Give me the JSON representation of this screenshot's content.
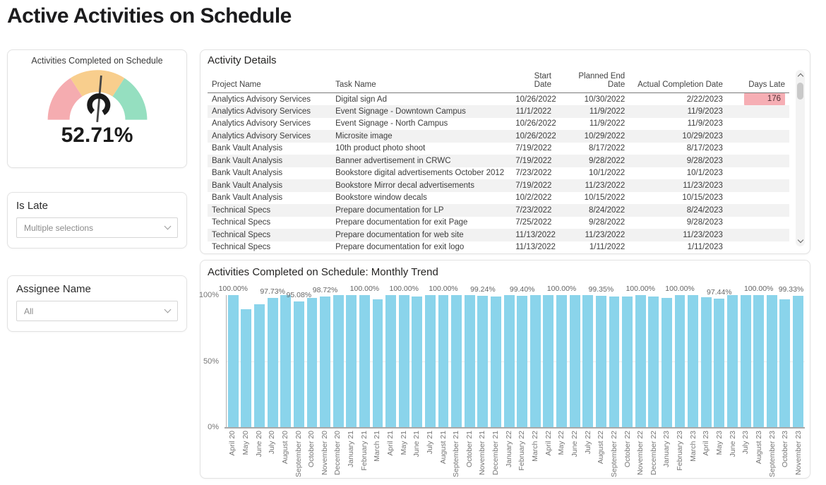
{
  "page": {
    "title": "Active Activities on Schedule"
  },
  "gauge_card": {
    "title": "Activities Completed on Schedule",
    "value": "52.71%",
    "percent": 52.71,
    "segment_colors": {
      "low": "#F5ACB0",
      "mid": "#F8CE8D",
      "high": "#95DFC0"
    },
    "needle_color": "#454545",
    "hub_color": "#1a1a1a"
  },
  "filter_is_late": {
    "label": "Is Late",
    "value": "Multiple selections"
  },
  "filter_assignee": {
    "label": "Assignee Name",
    "value": "All"
  },
  "table": {
    "title": "Activity Details",
    "columns": [
      "Project Name",
      "Task Name",
      "Start Date",
      "Planned End Date",
      "Actual Completion Date",
      "Days Late"
    ],
    "rows": [
      [
        "Analytics Advisory Services",
        "Digital sign Ad",
        "10/26/2022",
        "10/30/2022",
        "2/22/2023",
        "176"
      ],
      [
        "Analytics Advisory Services",
        "Event Signage - Downtown Campus",
        "11/1/2022",
        "11/9/2022",
        "11/9/2023",
        ""
      ],
      [
        "Analytics Advisory Services",
        "Event Signage - North Campus",
        "10/26/2022",
        "11/9/2022",
        "11/9/2023",
        ""
      ],
      [
        "Analytics Advisory Services",
        "Microsite image",
        "10/26/2022",
        "10/29/2022",
        "10/29/2023",
        ""
      ],
      [
        "Bank Vault Analysis",
        "10th product photo shoot",
        "7/19/2022",
        "8/17/2022",
        "8/17/2023",
        ""
      ],
      [
        "Bank Vault Analysis",
        "Banner advertisement in CRWC",
        "7/19/2022",
        "9/28/2022",
        "9/28/2023",
        ""
      ],
      [
        "Bank Vault Analysis",
        "Bookstore digital advertisements October 2012",
        "7/23/2022",
        "10/1/2022",
        "10/1/2023",
        ""
      ],
      [
        "Bank Vault Analysis",
        "Bookstore Mirror decal advertisements",
        "7/19/2022",
        "11/23/2022",
        "11/23/2023",
        ""
      ],
      [
        "Bank Vault Analysis",
        "Bookstore window decals",
        "10/2/2022",
        "10/15/2022",
        "10/15/2023",
        ""
      ],
      [
        "Technical Specs",
        "Prepare documentation for LP",
        "7/23/2022",
        "8/24/2022",
        "8/24/2023",
        ""
      ],
      [
        "Technical Specs",
        "Prepare documentation for exit Page",
        "7/25/2022",
        "9/28/2022",
        "9/28/2023",
        ""
      ],
      [
        "Technical Specs",
        "Prepare documentation for web site",
        "11/13/2022",
        "11/23/2022",
        "11/23/2023",
        ""
      ],
      [
        "Technical Specs",
        "Prepare documentation for exit logo",
        "11/13/2022",
        "1/11/2022",
        "1/11/2023",
        ""
      ]
    ],
    "highlight": {
      "row": 0,
      "column": "Days Late",
      "value": "176",
      "color": "#F6AEB4"
    }
  },
  "chart_data": {
    "type": "bar",
    "title": "Activities Completed on Schedule: Monthly Trend",
    "categories": [
      "April 20",
      "May 20",
      "June 20",
      "July 20",
      "August 20",
      "September 20",
      "October 20",
      "November 20",
      "December 20",
      "January 21",
      "February 21",
      "March 21",
      "April 21",
      "May 21",
      "June 21",
      "July 21",
      "August 21",
      "September 21",
      "October 21",
      "November 21",
      "December 21",
      "January 22",
      "February 22",
      "March 22",
      "April 22",
      "May 22",
      "June 22",
      "July 22",
      "August 22",
      "September 22",
      "October 22",
      "November 22",
      "December 22",
      "January 23",
      "February 23",
      "March 23",
      "April 23",
      "May 23",
      "June 23",
      "July 23",
      "August 23",
      "September 23",
      "October 23",
      "November 23"
    ],
    "values": [
      100,
      89.5,
      93.2,
      97.73,
      100,
      95.08,
      97.9,
      98.72,
      100,
      100,
      100,
      96.6,
      100,
      100,
      98.9,
      100,
      100,
      100,
      100,
      99.24,
      98.9,
      100,
      99.4,
      100,
      100,
      100,
      100,
      100,
      99.35,
      98.9,
      98.9,
      100,
      98.9,
      97.9,
      100,
      100,
      98.2,
      97.44,
      100,
      100,
      100,
      100,
      96.6,
      99.33
    ],
    "data_labels": [
      {
        "index": 0,
        "text": "100.00%"
      },
      {
        "index": 3,
        "text": "97.73%"
      },
      {
        "index": 5,
        "text": "95.08%"
      },
      {
        "index": 7,
        "text": "98.72%"
      },
      {
        "index": 10,
        "text": "100.00%"
      },
      {
        "index": 13,
        "text": "100.00%"
      },
      {
        "index": 16,
        "text": "100.00%"
      },
      {
        "index": 19,
        "text": "99.24%"
      },
      {
        "index": 22,
        "text": "99.40%"
      },
      {
        "index": 25,
        "text": "100.00%"
      },
      {
        "index": 28,
        "text": "99.35%"
      },
      {
        "index": 31,
        "text": "100.00%"
      },
      {
        "index": 34,
        "text": "100.00%"
      },
      {
        "index": 37,
        "text": "97.44%"
      },
      {
        "index": 40,
        "text": "100.00%"
      },
      {
        "index": 43,
        "text": "99.33%"
      }
    ],
    "yticks": [
      "100%",
      "50%",
      "0%"
    ],
    "ylim": [
      0,
      100
    ],
    "bar_color": "#8AD4EB",
    "legend": "none",
    "grid": "horizontal line at 50% only"
  }
}
